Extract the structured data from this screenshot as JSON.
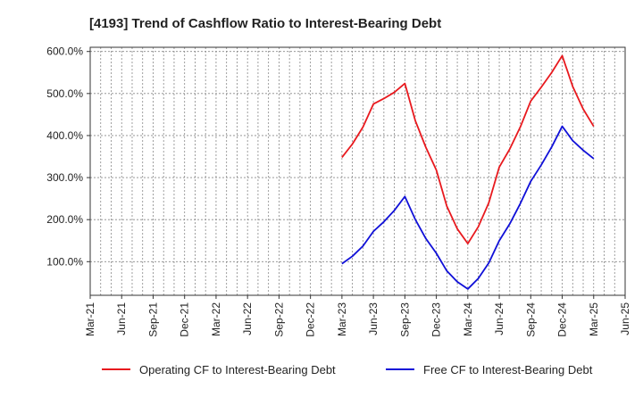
{
  "chart_data": {
    "type": "line",
    "title": "[4193]  Trend of Cashflow Ratio to Interest-Bearing Debt",
    "xlabel": "",
    "ylabel": "",
    "x_ticks": [
      "Mar-21",
      "Jun-21",
      "Sep-21",
      "Dec-21",
      "Mar-22",
      "Jun-22",
      "Sep-22",
      "Dec-22",
      "Mar-23",
      "Jun-23",
      "Sep-23",
      "Dec-23",
      "Mar-24",
      "Jun-24",
      "Sep-24",
      "Dec-24",
      "Mar-25",
      "Jun-25"
    ],
    "y_ticks": [
      "100.0%",
      "200.0%",
      "300.0%",
      "400.0%",
      "500.0%",
      "600.0%"
    ],
    "y_tick_values": [
      100,
      200,
      300,
      400,
      500,
      600
    ],
    "ylim": [
      20,
      610
    ],
    "grid": true,
    "legend_position": "bottom",
    "x": [
      "Mar-23",
      "Apr-23",
      "May-23",
      "Jun-23",
      "Jul-23",
      "Aug-23",
      "Sep-23",
      "Oct-23",
      "Nov-23",
      "Dec-23",
      "Jan-24",
      "Feb-24",
      "Mar-24",
      "Apr-24",
      "May-24",
      "Jun-24",
      "Jul-24",
      "Aug-24",
      "Sep-24",
      "Oct-24",
      "Nov-24",
      "Dec-24",
      "Jan-25",
      "Feb-25",
      "Mar-25"
    ],
    "series": [
      {
        "name": "Operating CF to Interest-Bearing Debt",
        "color": "#e8191e",
        "values": [
          348,
          380,
          420,
          475,
          488,
          503,
          524,
          435,
          372,
          318,
          232,
          178,
          143,
          183,
          240,
          325,
          368,
          420,
          482,
          515,
          550,
          590,
          517,
          463,
          422
        ]
      },
      {
        "name": "Free CF to Interest-Bearing Debt",
        "color": "#1010d8",
        "values": [
          95,
          113,
          137,
          172,
          195,
          222,
          255,
          200,
          155,
          120,
          78,
          52,
          35,
          60,
          97,
          150,
          190,
          238,
          291,
          330,
          373,
          422,
          388,
          365,
          345
        ]
      }
    ]
  }
}
